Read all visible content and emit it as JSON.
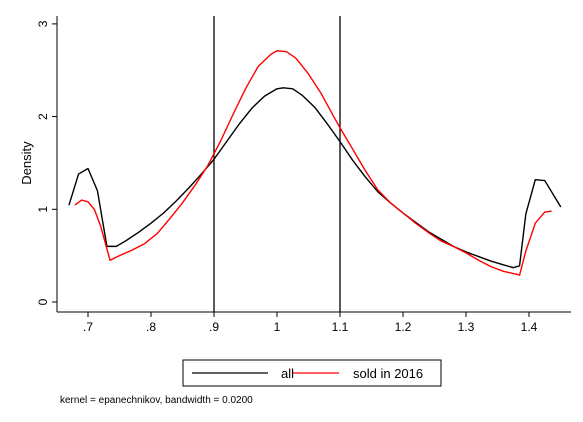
{
  "chart_data": {
    "type": "line",
    "title": "",
    "xlabel": "",
    "ylabel": "Density",
    "xlim": [
      0.67,
      1.45
    ],
    "ylim": [
      0,
      3
    ],
    "x_ticks": [
      0.7,
      0.8,
      0.9,
      1.0,
      1.1,
      1.2,
      1.3,
      1.4
    ],
    "x_tick_labels": [
      ".7",
      ".8",
      ".9",
      "1",
      "1.1",
      "1.2",
      "1.3",
      "1.4"
    ],
    "y_ticks": [
      0,
      1,
      2,
      3
    ],
    "y_tick_labels": [
      "0",
      "1",
      "2",
      "3"
    ],
    "reference_lines_x": [
      0.9,
      1.1
    ],
    "grid": false,
    "legend_position": "bottom",
    "note": "kernel = epanechnikov, bandwidth = 0.0200",
    "series": [
      {
        "name": "all",
        "color": "#000000",
        "x": [
          0.67,
          0.685,
          0.7,
          0.715,
          0.73,
          0.745,
          0.76,
          0.78,
          0.8,
          0.82,
          0.84,
          0.86,
          0.88,
          0.9,
          0.92,
          0.94,
          0.96,
          0.98,
          1.0,
          1.01,
          1.025,
          1.04,
          1.06,
          1.08,
          1.1,
          1.12,
          1.14,
          1.16,
          1.18,
          1.2,
          1.22,
          1.24,
          1.26,
          1.28,
          1.3,
          1.32,
          1.34,
          1.36,
          1.375,
          1.385,
          1.395,
          1.41,
          1.425,
          1.45
        ],
        "y": [
          1.05,
          1.38,
          1.44,
          1.2,
          0.6,
          0.6,
          0.66,
          0.75,
          0.85,
          0.96,
          1.09,
          1.23,
          1.38,
          1.54,
          1.73,
          1.92,
          2.09,
          2.22,
          2.3,
          2.31,
          2.3,
          2.23,
          2.1,
          1.92,
          1.73,
          1.53,
          1.35,
          1.19,
          1.07,
          0.96,
          0.86,
          0.76,
          0.68,
          0.6,
          0.54,
          0.49,
          0.44,
          0.4,
          0.37,
          0.39,
          0.95,
          1.32,
          1.31,
          1.03
        ]
      },
      {
        "name": "sold in 2016",
        "color": "#ff0000",
        "x": [
          0.68,
          0.69,
          0.7,
          0.71,
          0.72,
          0.735,
          0.75,
          0.77,
          0.79,
          0.81,
          0.83,
          0.85,
          0.87,
          0.89,
          0.91,
          0.93,
          0.95,
          0.97,
          0.99,
          1.0,
          1.015,
          1.03,
          1.05,
          1.07,
          1.09,
          1.1,
          1.12,
          1.14,
          1.16,
          1.18,
          1.2,
          1.22,
          1.24,
          1.26,
          1.28,
          1.3,
          1.32,
          1.34,
          1.36,
          1.38,
          1.385,
          1.395,
          1.41,
          1.425,
          1.435
        ],
        "y": [
          1.05,
          1.1,
          1.08,
          1.0,
          0.82,
          0.45,
          0.5,
          0.56,
          0.63,
          0.74,
          0.9,
          1.07,
          1.26,
          1.47,
          1.73,
          2.02,
          2.3,
          2.54,
          2.67,
          2.71,
          2.7,
          2.63,
          2.46,
          2.25,
          2.0,
          1.88,
          1.65,
          1.42,
          1.21,
          1.07,
          0.96,
          0.85,
          0.75,
          0.66,
          0.6,
          0.53,
          0.45,
          0.38,
          0.33,
          0.3,
          0.29,
          0.55,
          0.85,
          0.97,
          0.98
        ]
      }
    ]
  }
}
